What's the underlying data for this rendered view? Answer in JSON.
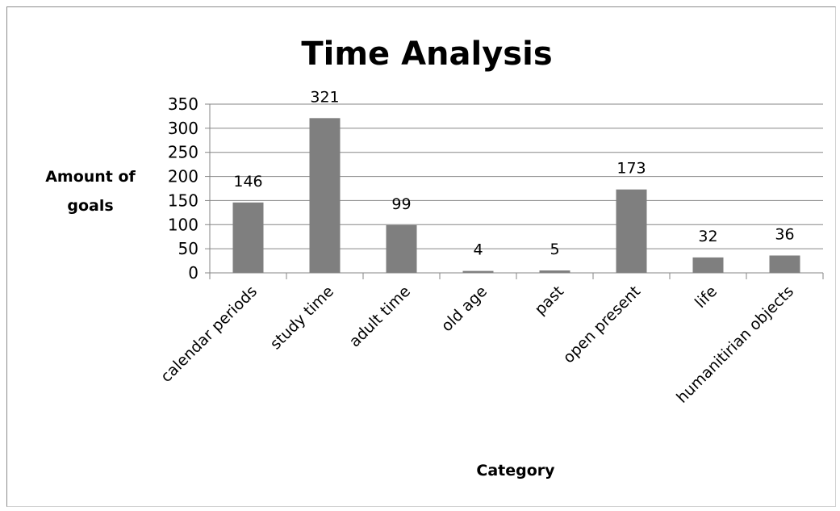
{
  "chart_data": {
    "type": "bar",
    "title": "Time Analysis",
    "xlabel": "Category",
    "ylabel": [
      "Amount of",
      "goals"
    ],
    "categories": [
      "calendar periods",
      "study time",
      "adult time",
      "old age",
      "past",
      "open present",
      "life",
      "humanitirian objects"
    ],
    "values": [
      146,
      321,
      99,
      4,
      5,
      173,
      32,
      36
    ],
    "ylim": [
      0,
      350
    ],
    "yticks": [
      0,
      50,
      100,
      150,
      200,
      250,
      300,
      350
    ],
    "grid": true,
    "legend": "none",
    "bar_color": "#7f7f7f"
  }
}
